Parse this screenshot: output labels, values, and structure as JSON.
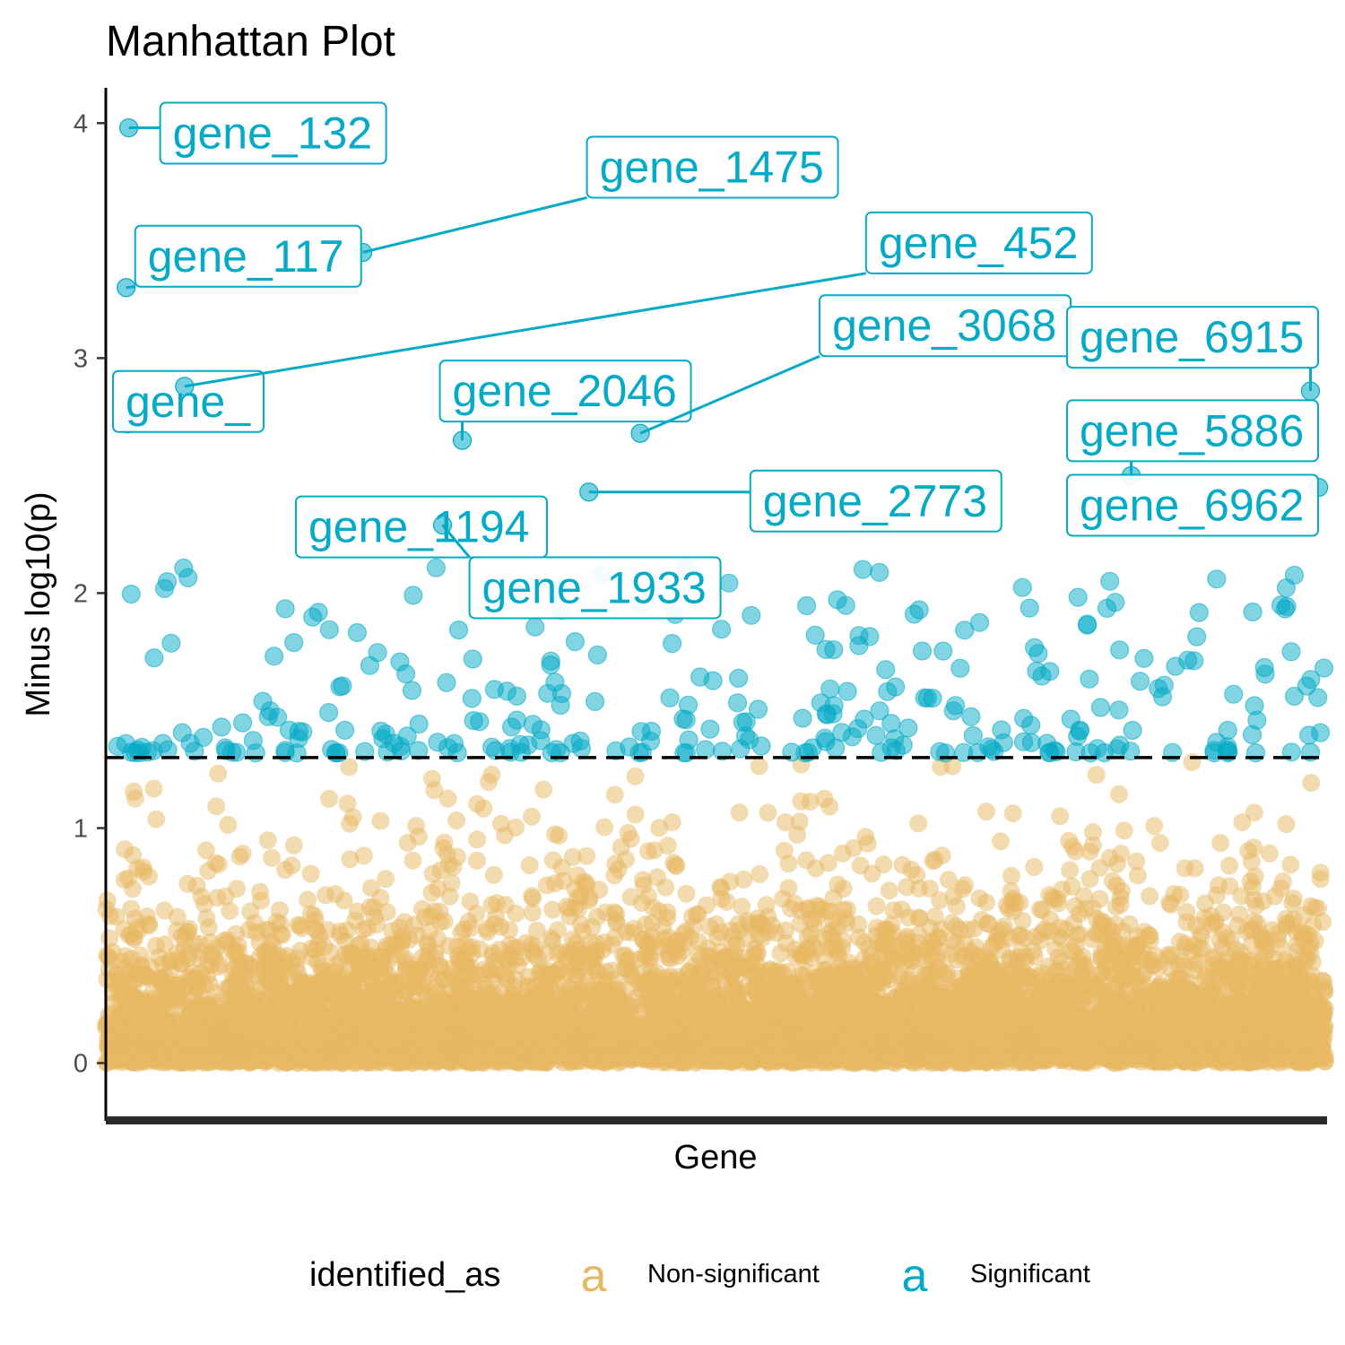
{
  "chart_data": {
    "type": "scatter",
    "title": "Manhattan Plot",
    "xlabel": "Gene",
    "ylabel": "Minus log10(p)",
    "ylim": [
      -0.2,
      4.15
    ],
    "xlim": [
      0,
      7000
    ],
    "y_ticks": [
      "0",
      "1",
      "2",
      "3",
      "4"
    ],
    "threshold": 1.3,
    "threshold_style": "dashed",
    "grid": false,
    "legend": {
      "title": "identified_as",
      "placement": "bottom",
      "key_glyph": "a",
      "entries": [
        {
          "label": "Non-significant",
          "color": "#E7B862"
        },
        {
          "label": "Significant",
          "color": "#04AAC6"
        }
      ]
    },
    "colors": {
      "non_significant": "#E7B862",
      "significant": "#04AAC6",
      "threshold": "#000000"
    },
    "non_significant_summary": {
      "count_approx": 6700,
      "y_range": [
        0,
        1.3
      ]
    },
    "labeled_points": [
      {
        "gene": "gene_132",
        "x": 132,
        "y": 3.98
      },
      {
        "gene": "gene_1475",
        "x": 1475,
        "y": 3.45
      },
      {
        "gene": "gene_117",
        "x": 117,
        "y": 3.3
      },
      {
        "gene": "gene_",
        "x": 125,
        "y": 2.72
      },
      {
        "gene": "gene_2046",
        "x": 2046,
        "y": 2.65
      },
      {
        "gene": "gene_1194",
        "x": 1194,
        "y": 2.32
      },
      {
        "gene": "gene_3068",
        "x": 3068,
        "y": 2.68
      },
      {
        "gene": "gene_452",
        "x": 452,
        "y": 2.88
      },
      {
        "gene": "gene_6915",
        "x": 6915,
        "y": 2.86
      },
      {
        "gene": "gene_5886",
        "x": 5886,
        "y": 2.5
      },
      {
        "gene": "gene_2773",
        "x": 2773,
        "y": 2.43
      },
      {
        "gene": "gene_6962",
        "x": 6962,
        "y": 2.45
      },
      {
        "gene": "gene_1933",
        "x": 1933,
        "y": 2.29
      }
    ]
  }
}
